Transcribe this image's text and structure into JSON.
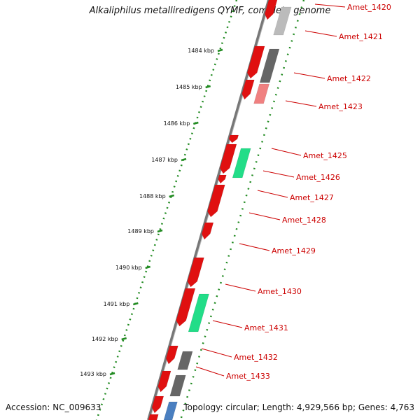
{
  "title": "Alkaliphilus metalliredigens QYMF, complete genome",
  "accession": "Accession: NC_009633",
  "topology": "Topology: circular; Length: 4,929,566 bp; Genes: 4,763",
  "colors": {
    "backbone": "#777777",
    "tick_dots": "#228b22",
    "gene_forward": "#e01010",
    "gene_light": "#f08080",
    "gene_gray": "#666666",
    "gene_lightgray": "#bbbbbb",
    "gene_green": "#22dd88",
    "gene_blue": "#4a7fc0",
    "label": "#cc0000"
  },
  "scale_ticks": [
    {
      "label": "1484 kbp"
    },
    {
      "label": "1485 kbp"
    },
    {
      "label": "1486 kbp"
    },
    {
      "label": "1487 kbp"
    },
    {
      "label": "1488 kbp"
    },
    {
      "label": "1489 kbp"
    },
    {
      "label": "1490 kbp"
    },
    {
      "label": "1491 kbp"
    },
    {
      "label": "1492 kbp"
    },
    {
      "label": "1493 kbp"
    }
  ],
  "gene_labels": [
    {
      "label": "Amet_1420"
    },
    {
      "label": "Amet_1421"
    },
    {
      "label": "Amet_1422"
    },
    {
      "label": "Amet_1423"
    },
    {
      "label": "Amet_1425"
    },
    {
      "label": "Amet_1426"
    },
    {
      "label": "Amet_1427"
    },
    {
      "label": "Amet_1428"
    },
    {
      "label": "Amet_1429"
    },
    {
      "label": "Amet_1430"
    },
    {
      "label": "Amet_1431"
    },
    {
      "label": "Amet_1432"
    },
    {
      "label": "Amet_1433"
    }
  ]
}
